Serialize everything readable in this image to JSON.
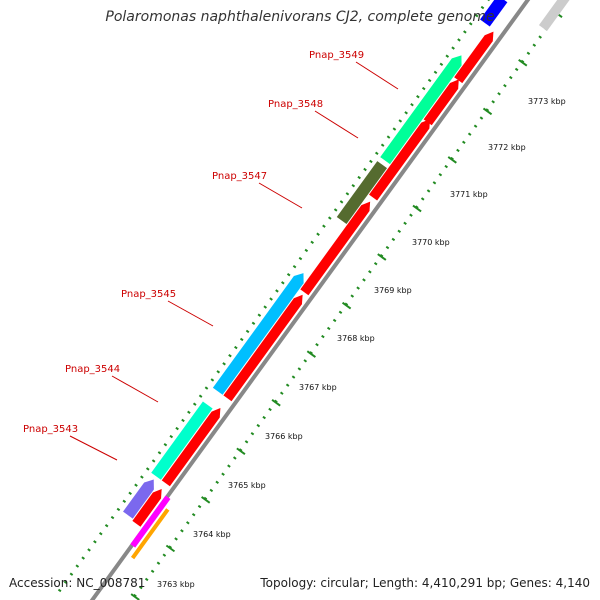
{
  "title": "Polaromonas naphthalenivorans CJ2, complete genome",
  "footer": {
    "accession": "Accession: NC_008781",
    "topology": "Topology: circular; Length: 4,410,291 bp; Genes: 4,140"
  },
  "colors": {
    "backbone": "#888888",
    "tick": "#228b22",
    "gene_label": "#cc0000",
    "cds_reverse": "#ff0000"
  },
  "gene_labels": [
    "Pnap_3543",
    "Pnap_3544",
    "Pnap_3545",
    "Pnap_3547",
    "Pnap_3548",
    "Pnap_3549"
  ],
  "kbp_labels": [
    "3763 kbp",
    "3764 kbp",
    "3765 kbp",
    "3766 kbp",
    "3767 kbp",
    "3768 kbp",
    "3769 kbp",
    "3770 kbp",
    "3771 kbp",
    "3772 kbp",
    "3773 kbp"
  ],
  "forward_features": [
    {
      "color": "#7b68ee",
      "kind": "arrow"
    },
    {
      "color": "#00ffcc",
      "kind": "block"
    },
    {
      "color": "#00bfff",
      "kind": "arrow"
    },
    {
      "color": "#556b2f",
      "kind": "block"
    },
    {
      "color": "#00ff99",
      "kind": "arrow"
    },
    {
      "color": "#0000ff",
      "kind": "block"
    },
    {
      "color": "#0000ff",
      "kind": "arrow"
    }
  ],
  "reverse_features": [
    {
      "color": "#ff0000",
      "kind": "arrow"
    },
    {
      "color": "#ff0000",
      "kind": "arrow"
    },
    {
      "color": "#ff0000",
      "kind": "arrow"
    },
    {
      "color": "#ff0000",
      "kind": "arrow"
    },
    {
      "color": "#ff0000",
      "kind": "arrow"
    },
    {
      "color": "#ff0000",
      "kind": "arrow"
    },
    {
      "color": "#ff0000",
      "kind": "arrow"
    },
    {
      "color": "#cccccc",
      "kind": "arrow"
    },
    {
      "color": "#ff00ff",
      "kind": "block"
    },
    {
      "color": "#ffa500",
      "kind": "block"
    }
  ]
}
